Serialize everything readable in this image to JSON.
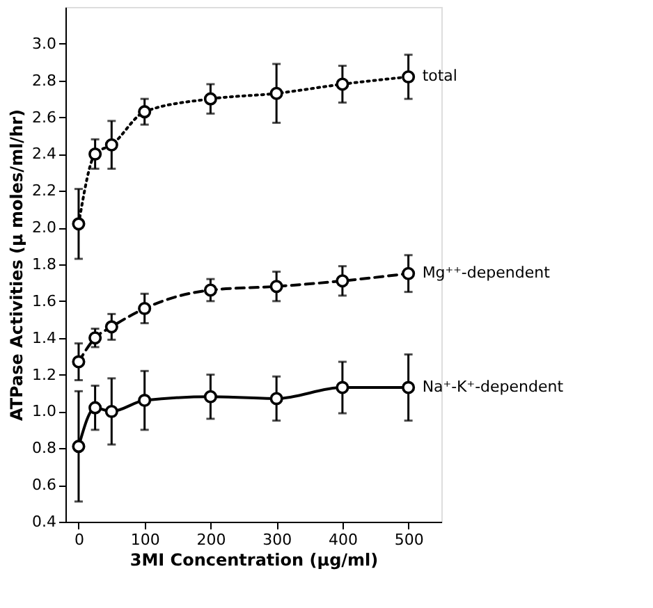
{
  "chart_data": {
    "type": "line",
    "xlabel": "3MI Concentration (μg/ml)",
    "ylabel": "ATPase  Activities  (μ moles/ml/hr)",
    "x": [
      0,
      25,
      50,
      100,
      200,
      300,
      400,
      500
    ],
    "xlim": [
      -20,
      550
    ],
    "xticks": [
      0,
      100,
      200,
      300,
      400,
      500
    ],
    "ylim": [
      0.4,
      3.2
    ],
    "yticks": [
      0.4,
      0.6,
      0.8,
      {
        "value": 1,
        "label": "1.0"
      },
      1.2,
      1.4,
      1.6,
      1.8,
      {
        "value": 2,
        "label": "2.0"
      },
      2.2,
      2.4,
      2.6,
      2.8,
      {
        "value": 3,
        "label": "3.0"
      }
    ],
    "marker": "circle",
    "grid": false,
    "series": [
      {
        "name": "total",
        "color": "#000000",
        "line_style": "dotted",
        "values": [
          2.02,
          2.4,
          2.45,
          2.63,
          2.7,
          2.73,
          2.78,
          2.82
        ],
        "errors": [
          0.19,
          0.08,
          0.13,
          0.07,
          0.08,
          0.16,
          0.1,
          0.12
        ]
      },
      {
        "name": "Mg⁺⁺-dependent",
        "color": "#000000",
        "line_style": "dashed",
        "values": [
          1.27,
          1.4,
          1.46,
          1.56,
          1.66,
          1.68,
          1.71,
          1.75
        ],
        "errors": [
          0.1,
          0.05,
          0.07,
          0.08,
          0.06,
          0.08,
          0.08,
          0.1
        ]
      },
      {
        "name": "Na⁺-K⁺-dependent",
        "color": "#000000",
        "line_style": "solid",
        "values": [
          0.81,
          1.02,
          1.0,
          1.06,
          1.08,
          1.07,
          1.13,
          1.13
        ],
        "errors": [
          0.3,
          0.12,
          0.18,
          0.16,
          0.12,
          0.12,
          0.14,
          0.18
        ]
      }
    ]
  }
}
